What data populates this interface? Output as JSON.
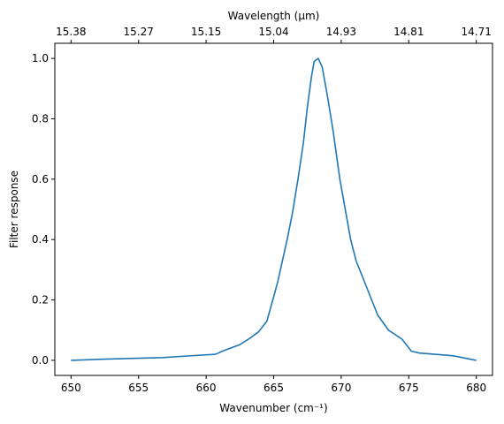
{
  "chart_data": {
    "type": "line",
    "xlabel": "Wavenumber (cm⁻¹)",
    "ylabel": "Filter response",
    "top_xlabel": "Wavelength (μm)",
    "xlim": [
      648.8,
      681.2
    ],
    "ylim": [
      -0.05,
      1.05
    ],
    "xticks": [
      650,
      655,
      660,
      665,
      670,
      675,
      680
    ],
    "xtick_labels": [
      "650",
      "655",
      "660",
      "665",
      "670",
      "675",
      "680"
    ],
    "yticks": [
      0.0,
      0.2,
      0.4,
      0.6,
      0.8,
      1.0
    ],
    "ytick_labels": [
      "0.0",
      "0.2",
      "0.4",
      "0.6",
      "0.8",
      "1.0"
    ],
    "top_xticks": [
      650,
      655,
      660,
      665,
      670,
      675,
      680
    ],
    "top_xtick_labels": [
      "15.38",
      "15.27",
      "15.15",
      "15.04",
      "14.93",
      "14.81",
      "14.71"
    ],
    "grid": false,
    "series": [
      {
        "color": "#1f77b4",
        "x": [
          650,
          652.5,
          656.8,
          658.5,
          660.7,
          661.3,
          662.5,
          663.3,
          663.9,
          664.5,
          665.0,
          665.3,
          665.7,
          666.0,
          666.4,
          666.8,
          667.2,
          667.5,
          667.8,
          668.0,
          668.3,
          668.6,
          669.0,
          669.4,
          669.9,
          670.3,
          670.7,
          671.1,
          671.9,
          672.7,
          673.5,
          674.5,
          675.2,
          675.8,
          678.3,
          680
        ],
        "y": [
          0.0,
          0.004,
          0.009,
          0.014,
          0.02,
          0.032,
          0.052,
          0.075,
          0.095,
          0.13,
          0.21,
          0.26,
          0.34,
          0.4,
          0.49,
          0.6,
          0.72,
          0.84,
          0.94,
          0.99,
          1.0,
          0.97,
          0.87,
          0.76,
          0.6,
          0.5,
          0.4,
          0.33,
          0.24,
          0.15,
          0.1,
          0.07,
          0.03,
          0.024,
          0.015,
          0.0
        ]
      }
    ]
  }
}
